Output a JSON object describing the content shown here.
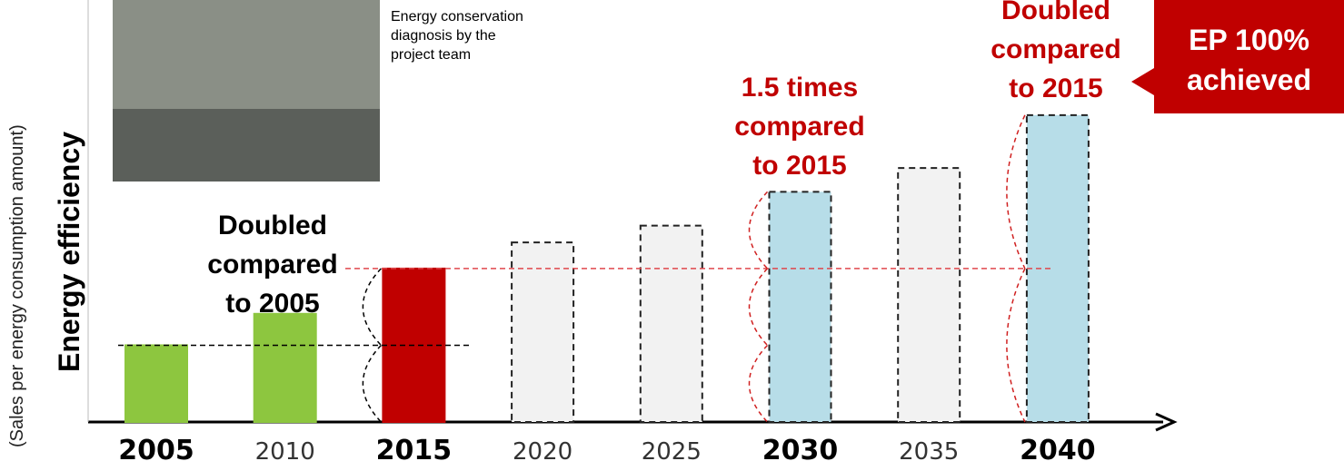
{
  "chart_data": {
    "type": "bar",
    "y_label": "Energy efficiency",
    "y_sublabel": "(Sales per energy consumption amount)",
    "categories": [
      "2005",
      "2010",
      "2015",
      "2020",
      "2025",
      "2030",
      "2035",
      "2040"
    ],
    "values": [
      1,
      1.41,
      2,
      2.34,
      2.56,
      3,
      3.31,
      4
    ],
    "colors": [
      "#8dc63f",
      "#8dc63f",
      "#c00000",
      "#f2f2f2",
      "#f2f2f2",
      "#b7dde8",
      "#f2f2f2",
      "#b7dde8"
    ],
    "dashed": [
      false,
      false,
      false,
      true,
      true,
      true,
      true,
      true
    ],
    "label_bold": [
      true,
      false,
      true,
      false,
      false,
      true,
      false,
      true
    ],
    "ylim": [
      0,
      5.5
    ],
    "photo_caption": "Energy conservation\ndiagnosis by the\nproject team",
    "annotations": [
      {
        "text": "Doubled\ncompared\nto 2005",
        "color": "#000000"
      },
      {
        "text": "1.5 times\ncompared\nto 2015",
        "color": "#c00000"
      },
      {
        "text": "Doubled\ncompared\nto 2015",
        "color": "#c00000"
      }
    ],
    "callout": "EP 100%\nachieved"
  }
}
